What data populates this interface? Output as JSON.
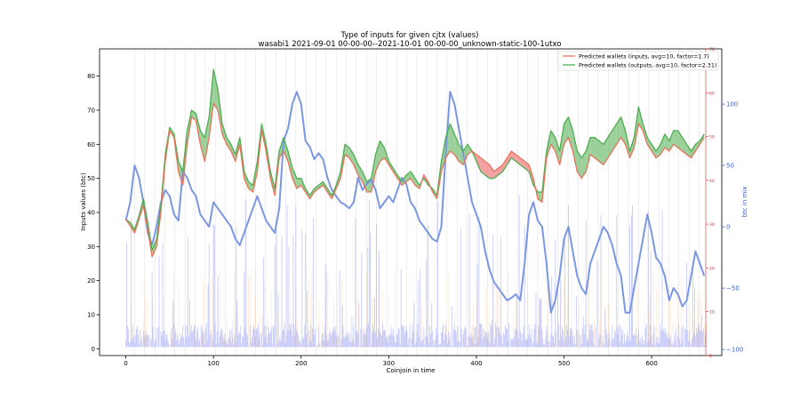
{
  "chart_data": {
    "type": "line",
    "title": "Type of inputs for given cjtx (values)",
    "subtitle": "wasabi1 2021-09-01 00-00-00--2021-10-01 00-00-00_unknown-static-100-1utxo",
    "xlabel": "Coinjoin in time",
    "ylabel": "Inputs values (btc)",
    "y2label": "btc in mix",
    "xlim": [
      -30,
      680
    ],
    "ylim": [
      -2,
      88
    ],
    "y3lim": [
      0,
      70
    ],
    "y2lim": [
      -105,
      145
    ],
    "x_ticks": [
      "0",
      "100",
      "200",
      "300",
      "400",
      "500",
      "600"
    ],
    "y_ticks": [
      "0",
      "10",
      "20",
      "30",
      "40",
      "50",
      "60",
      "70",
      "80"
    ],
    "y3_ticks": [
      "0",
      "10",
      "20",
      "30",
      "40",
      "50",
      "60",
      "70"
    ],
    "y2_ticks": [
      "−100",
      "−50",
      "0",
      "50",
      "100"
    ],
    "legend": [
      "Predicted wallets (inputs, avg=10, factor=1.7)",
      "Predicted wallets (outputs, avg=10, factor=2.31)"
    ],
    "legend_position": "top-right",
    "grid": false,
    "colors": {
      "inputs": "#e8735a",
      "outputs": "#4caf50",
      "fill_outputs": "#79c07a",
      "fill_inputs": "#f28080",
      "mix": "#7b97e3",
      "bars_blue": "#9aa3f5",
      "bars_orange": "#f7b36b",
      "red_axis": "#d62728",
      "blue_axis": "#3a5fcd",
      "vlines": "#dddddd"
    },
    "series": [
      {
        "name": "Predicted wallets (inputs, avg=10, factor=1.7)",
        "x": [
          0,
          5,
          10,
          15,
          20,
          25,
          30,
          35,
          40,
          45,
          50,
          55,
          60,
          65,
          70,
          75,
          80,
          85,
          90,
          95,
          100,
          105,
          110,
          115,
          120,
          125,
          130,
          135,
          140,
          145,
          150,
          155,
          160,
          165,
          170,
          175,
          180,
          185,
          190,
          195,
          200,
          205,
          210,
          215,
          220,
          225,
          230,
          235,
          240,
          245,
          250,
          255,
          260,
          265,
          270,
          275,
          280,
          285,
          290,
          295,
          300,
          305,
          310,
          315,
          320,
          325,
          330,
          335,
          340,
          345,
          350,
          355,
          360,
          365,
          370,
          375,
          380,
          385,
          390,
          395,
          400,
          405,
          410,
          415,
          420,
          425,
          430,
          435,
          440,
          445,
          450,
          455,
          460,
          465,
          470,
          475,
          480,
          485,
          490,
          495,
          500,
          505,
          510,
          515,
          520,
          525,
          530,
          535,
          540,
          545,
          550,
          555,
          560,
          565,
          570,
          575,
          580,
          585,
          590,
          595,
          600,
          605,
          610,
          615,
          620,
          625,
          630,
          635,
          640,
          645,
          650,
          655,
          660
        ],
        "values": [
          38,
          36,
          34,
          38,
          42,
          35,
          27,
          30,
          40,
          55,
          64,
          62,
          52,
          48,
          60,
          68,
          67,
          60,
          55,
          62,
          72,
          70,
          63,
          60,
          58,
          55,
          60,
          50,
          47,
          46,
          52,
          64,
          58,
          50,
          45,
          56,
          58,
          55,
          50,
          47,
          48,
          46,
          44,
          46,
          47,
          48,
          46,
          44,
          47,
          50,
          57,
          56,
          54,
          51,
          49,
          46,
          46,
          52,
          55,
          56,
          54,
          52,
          50,
          48,
          49,
          50,
          48,
          47,
          51,
          49,
          46,
          44,
          52,
          56,
          58,
          57,
          55,
          54,
          57,
          58,
          57,
          56,
          55,
          54,
          52,
          53,
          54,
          56,
          58,
          57,
          56,
          55,
          54,
          50,
          44,
          43,
          56,
          60,
          58,
          54,
          60,
          62,
          58,
          52,
          50,
          52,
          57,
          56,
          55,
          54,
          56,
          58,
          60,
          62,
          60,
          56,
          59,
          66,
          64,
          60,
          58,
          56,
          57,
          59,
          58,
          60,
          59,
          58,
          57,
          56,
          58,
          60,
          62
        ]
      },
      {
        "name": "Predicted wallets (outputs, avg=10, factor=2.31)",
        "x": [
          0,
          5,
          10,
          15,
          20,
          25,
          30,
          35,
          40,
          45,
          50,
          55,
          60,
          65,
          70,
          75,
          80,
          85,
          90,
          95,
          100,
          105,
          110,
          115,
          120,
          125,
          130,
          135,
          140,
          145,
          150,
          155,
          160,
          165,
          170,
          175,
          180,
          185,
          190,
          195,
          200,
          205,
          210,
          215,
          220,
          225,
          230,
          235,
          240,
          245,
          250,
          255,
          260,
          265,
          270,
          275,
          280,
          285,
          290,
          295,
          300,
          305,
          310,
          315,
          320,
          325,
          330,
          335,
          340,
          345,
          350,
          355,
          360,
          365,
          370,
          375,
          380,
          385,
          390,
          395,
          400,
          405,
          410,
          415,
          420,
          425,
          430,
          435,
          440,
          445,
          450,
          455,
          460,
          465,
          470,
          475,
          480,
          485,
          490,
          495,
          500,
          505,
          510,
          515,
          520,
          525,
          530,
          535,
          540,
          545,
          550,
          555,
          560,
          565,
          570,
          575,
          580,
          585,
          590,
          595,
          600,
          605,
          610,
          615,
          620,
          625,
          630,
          635,
          640,
          645,
          650,
          655,
          660
        ],
        "values": [
          38,
          37,
          35,
          39,
          44,
          37,
          29,
          32,
          42,
          57,
          65,
          63,
          55,
          52,
          64,
          70,
          69,
          64,
          62,
          68,
          82,
          76,
          66,
          62,
          60,
          57,
          62,
          52,
          49,
          48,
          55,
          66,
          60,
          52,
          47,
          58,
          62,
          58,
          53,
          50,
          50,
          47,
          45,
          47,
          48,
          49,
          47,
          45,
          48,
          52,
          60,
          59,
          57,
          54,
          52,
          49,
          50,
          57,
          61,
          59,
          55,
          53,
          51,
          49,
          51,
          52,
          50,
          48,
          50,
          48,
          47,
          45,
          55,
          62,
          66,
          63,
          60,
          58,
          60,
          58,
          55,
          52,
          51,
          50,
          50,
          51,
          52,
          54,
          56,
          55,
          54,
          53,
          52,
          48,
          46,
          46,
          58,
          64,
          62,
          58,
          66,
          68,
          64,
          58,
          56,
          58,
          62,
          62,
          61,
          60,
          62,
          64,
          66,
          68,
          64,
          58,
          62,
          71,
          66,
          62,
          60,
          58,
          60,
          63,
          61,
          64,
          64,
          62,
          60,
          58,
          60,
          61,
          63
        ]
      },
      {
        "name": "btc in mix",
        "x": [
          0,
          5,
          10,
          15,
          20,
          25,
          30,
          35,
          40,
          45,
          50,
          55,
          60,
          65,
          70,
          75,
          80,
          85,
          90,
          95,
          100,
          105,
          110,
          115,
          120,
          125,
          130,
          135,
          140,
          145,
          150,
          155,
          160,
          165,
          170,
          175,
          180,
          185,
          190,
          195,
          200,
          205,
          210,
          215,
          220,
          225,
          230,
          235,
          240,
          245,
          250,
          255,
          260,
          265,
          270,
          275,
          280,
          285,
          290,
          295,
          300,
          305,
          310,
          315,
          320,
          325,
          330,
          335,
          340,
          345,
          350,
          355,
          360,
          365,
          370,
          375,
          380,
          385,
          390,
          395,
          400,
          405,
          410,
          415,
          420,
          425,
          430,
          435,
          440,
          445,
          450,
          455,
          460,
          465,
          470,
          475,
          480,
          485,
          490,
          495,
          500,
          505,
          510,
          515,
          520,
          525,
          530,
          535,
          540,
          545,
          550,
          555,
          560,
          565,
          570,
          575,
          580,
          585,
          590,
          595,
          600,
          605,
          610,
          615,
          620,
          625,
          630,
          635,
          640,
          645,
          650,
          655,
          660
        ],
        "values": [
          5,
          20,
          50,
          40,
          20,
          -5,
          -15,
          0,
          20,
          30,
          25,
          10,
          5,
          45,
          40,
          30,
          25,
          10,
          5,
          0,
          20,
          15,
          10,
          5,
          0,
          -10,
          -15,
          -5,
          5,
          15,
          25,
          15,
          5,
          0,
          -5,
          15,
          70,
          80,
          100,
          110,
          100,
          70,
          65,
          55,
          60,
          55,
          40,
          30,
          25,
          20,
          18,
          15,
          20,
          40,
          30,
          35,
          38,
          30,
          15,
          20,
          25,
          20,
          30,
          40,
          35,
          20,
          15,
          5,
          0,
          -5,
          -10,
          -12,
          0,
          60,
          110,
          100,
          80,
          60,
          40,
          20,
          10,
          0,
          -20,
          -35,
          -45,
          -50,
          -55,
          -60,
          -58,
          -55,
          -60,
          -30,
          10,
          20,
          5,
          0,
          -30,
          -70,
          -60,
          -40,
          -10,
          0,
          -20,
          -40,
          -50,
          -55,
          -30,
          -20,
          -10,
          0,
          -5,
          -15,
          -30,
          -40,
          -70,
          -70,
          -50,
          -30,
          -10,
          10,
          -5,
          -25,
          -30,
          -40,
          -60,
          -50,
          -55,
          -65,
          -60,
          -40,
          -20,
          -30,
          -40
        ]
      }
    ]
  }
}
